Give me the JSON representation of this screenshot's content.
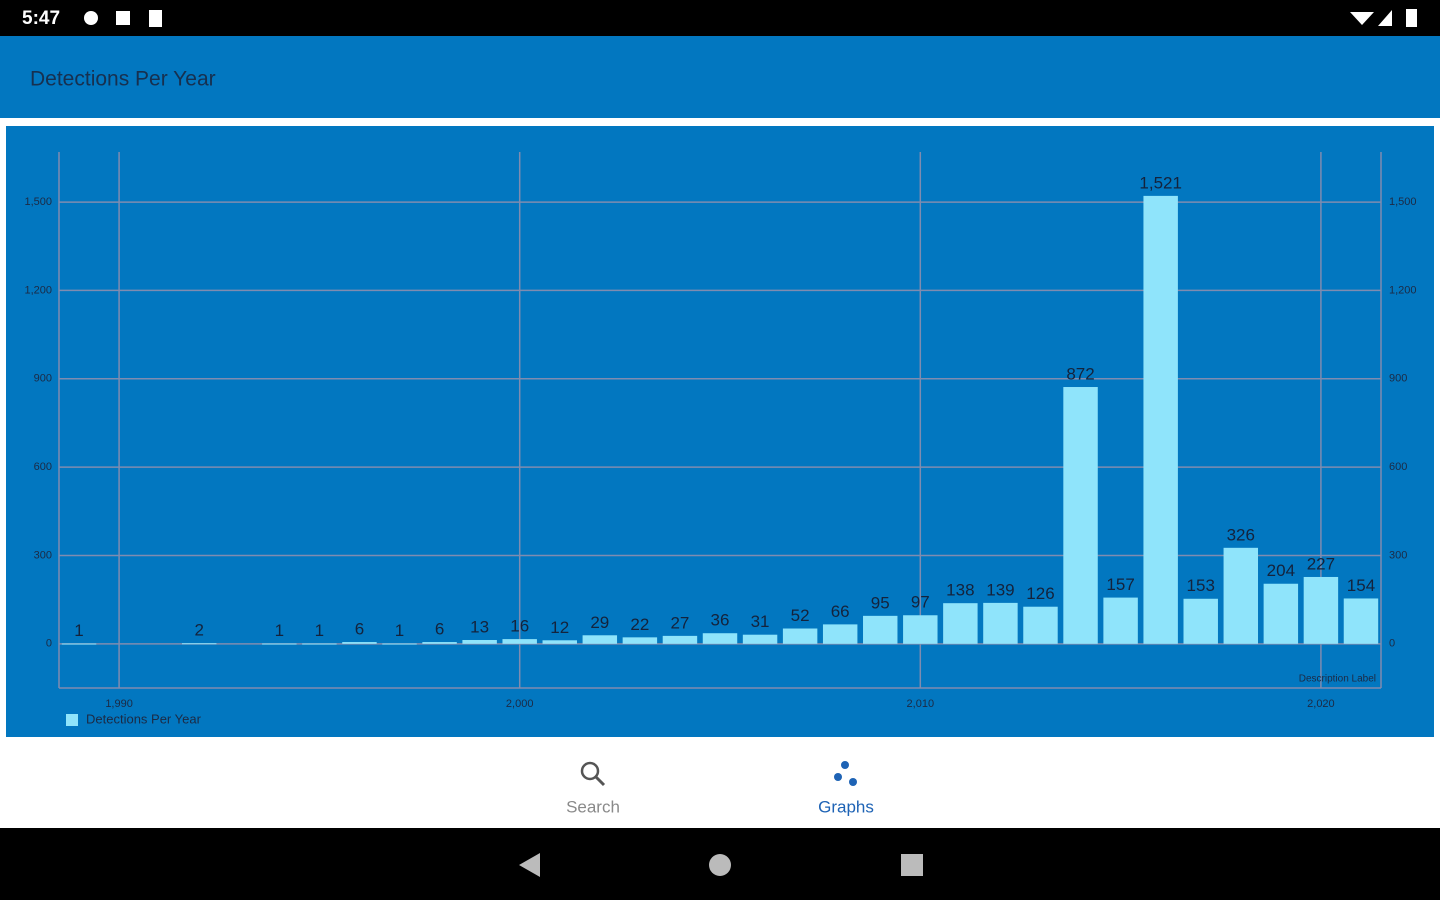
{
  "status_bar": {
    "time": "5:47"
  },
  "app_bar": {
    "title": "Detections Per Year"
  },
  "chart_data": {
    "type": "bar",
    "x": [
      1989,
      1992,
      1994,
      1995,
      1996,
      1997,
      1998,
      1999,
      2000,
      2001,
      2002,
      2003,
      2004,
      2005,
      2006,
      2007,
      2008,
      2009,
      2010,
      2011,
      2012,
      2013,
      2014,
      2015,
      2016,
      2017,
      2018,
      2019,
      2020,
      2021
    ],
    "series": [
      {
        "name": "Detections Per Year",
        "color": "#8fe4fb",
        "values": [
          1,
          2,
          1,
          1,
          6,
          1,
          6,
          13,
          16,
          12,
          29,
          22,
          27,
          36,
          31,
          52,
          66,
          95,
          97,
          138,
          139,
          126,
          872,
          157,
          1521,
          153,
          326,
          204,
          227,
          154
        ],
        "value_labels": [
          "1",
          "2",
          "1",
          "1",
          "6",
          "1",
          "6",
          "13",
          "16",
          "12",
          "29",
          "22",
          "27",
          "36",
          "31",
          "52",
          "66",
          "95",
          "97",
          "138",
          "139",
          "126",
          "872",
          "157",
          "1,521",
          "153",
          "326",
          "204",
          "227",
          "154"
        ]
      }
    ],
    "xlim": [
      1988.5,
      2021.5
    ],
    "xticks": [
      {
        "value": 1990,
        "label": "1,990"
      },
      {
        "value": 2000,
        "label": "2,000"
      },
      {
        "value": 2010,
        "label": "2,010"
      },
      {
        "value": 2020,
        "label": "2,020"
      }
    ],
    "ylim": [
      -150,
      1670
    ],
    "yticks": [
      0,
      300,
      600,
      900,
      {
        "value": 1200,
        "label": "1,200"
      },
      {
        "value": 1500,
        "label": "1,500"
      }
    ],
    "grid": true,
    "legend": "bottom-left",
    "description": "Description Label"
  },
  "bottom_nav": {
    "items": [
      {
        "label": "Search",
        "selected": false
      },
      {
        "label": "Graphs",
        "selected": true
      }
    ]
  }
}
